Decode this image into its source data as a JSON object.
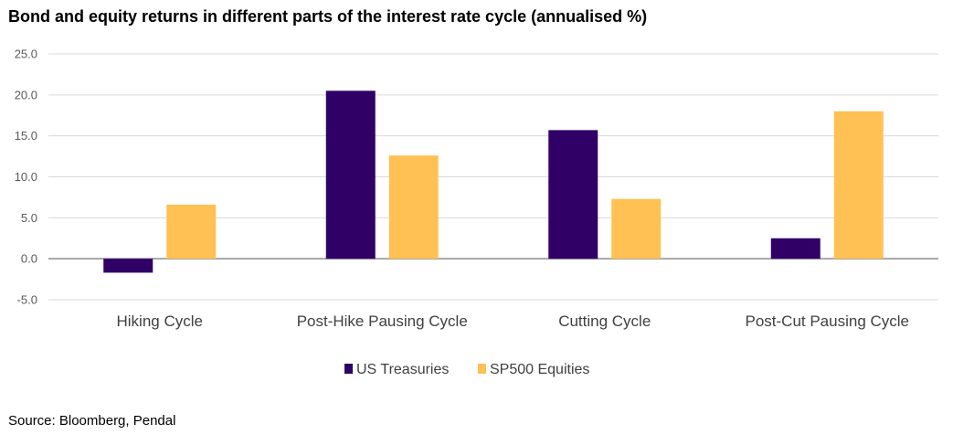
{
  "title": "Bond and equity returns in different parts of the interest rate cycle (annualised %)",
  "source": "Source: Bloomberg, Pendal",
  "chart_data": {
    "type": "bar",
    "title": "Bond and equity returns in different parts of the interest rate cycle (annualised %)",
    "xlabel": "",
    "ylabel": "",
    "categories": [
      "Hiking Cycle",
      "Post-Hike Pausing Cycle",
      "Cutting Cycle",
      "Post-Cut Pausing Cycle"
    ],
    "series": [
      {
        "name": "US Treasuries",
        "color": "#300066",
        "values": [
          -1.7,
          20.5,
          15.7,
          2.5
        ]
      },
      {
        "name": "SP500 Equities",
        "color": "#FFC153",
        "values": [
          6.6,
          12.6,
          7.3,
          18.0
        ]
      }
    ],
    "ylim": [
      -5,
      25
    ],
    "yticks": [
      "-5.0",
      "0.0",
      "5.0",
      "10.0",
      "15.0",
      "20.0",
      "25.0"
    ],
    "ytick_values": [
      -5,
      0,
      5,
      10,
      15,
      20,
      25
    ],
    "grid": true,
    "legend_position": "bottom-center"
  },
  "colors": {
    "gridline": "#D9D9D9",
    "zero_line": "#A6A6A6"
  }
}
